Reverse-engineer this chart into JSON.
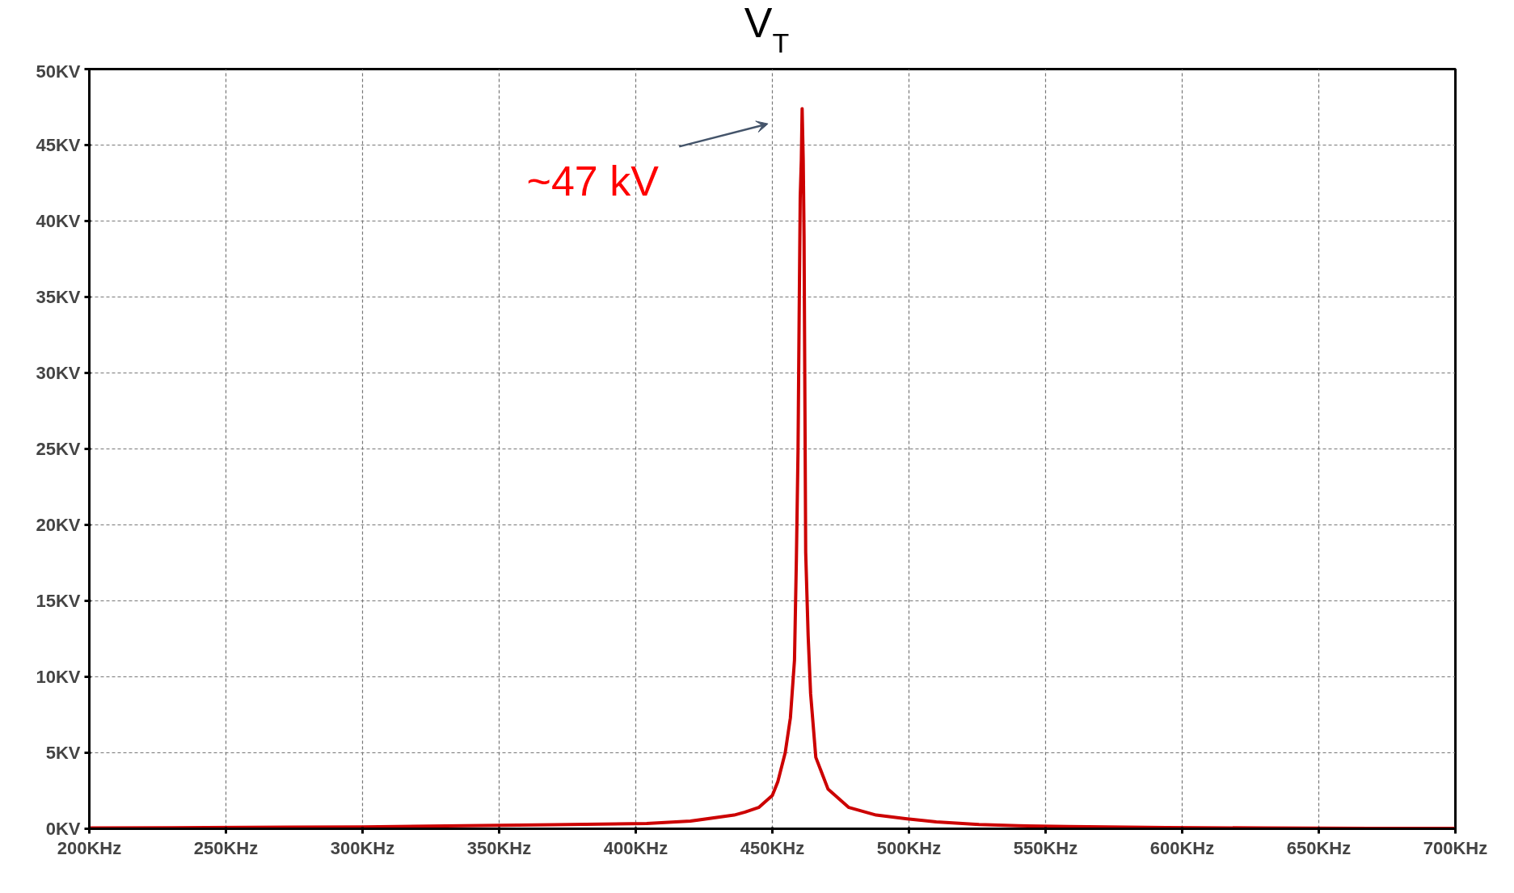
{
  "chart_data": {
    "type": "line",
    "title": "V$_{T}$",
    "x": [
      200,
      230,
      273,
      300,
      337,
      370,
      404,
      420,
      436,
      440,
      445,
      450,
      452,
      454.7,
      456.6,
      458.1,
      458.8,
      459.4,
      459.8,
      460.2,
      460.6,
      460.9,
      461.3,
      461.6,
      462.2,
      463.1,
      464,
      465.9,
      470.4,
      478,
      488,
      498.7,
      510,
      525.6,
      540,
      558.4,
      594.2,
      630,
      668.8,
      700
    ],
    "series": [
      {
        "color": "#cc0000",
        "values": [
          0.05,
          0.07,
          0.1,
          0.12,
          0.2,
          0.27,
          0.35,
          0.5,
          0.9,
          1.1,
          1.4,
          2.2,
          3.1,
          5.0,
          7.3,
          11.1,
          17.8,
          24.9,
          33.6,
          41.6,
          44,
          47.4,
          44,
          39,
          18.2,
          12.7,
          8.9,
          4.7,
          2.6,
          1.4,
          0.9,
          0.67,
          0.45,
          0.28,
          0.2,
          0.15,
          0.08,
          0.05,
          0.03,
          0.02
        ]
      }
    ],
    "xlim": [
      200,
      700
    ],
    "ylim": [
      0,
      50
    ],
    "xticks": [
      {
        "value": 200,
        "label": "200KHz"
      },
      {
        "value": 250,
        "label": "250KHz"
      },
      {
        "value": 300,
        "label": "300KHz"
      },
      {
        "value": 350,
        "label": "350KHz"
      },
      {
        "value": 400,
        "label": "400KHz"
      },
      {
        "value": 450,
        "label": "450KHz"
      },
      {
        "value": 500,
        "label": "500KHz"
      },
      {
        "value": 550,
        "label": "550KHz"
      },
      {
        "value": 600,
        "label": "600KHz"
      },
      {
        "value": 650,
        "label": "650KHz"
      },
      {
        "value": 700,
        "label": "700KHz"
      }
    ],
    "yticks": [
      {
        "value": 0,
        "label": "0KV"
      },
      {
        "value": 5,
        "label": "5KV"
      },
      {
        "value": 10,
        "label": "10KV"
      },
      {
        "value": 15,
        "label": "15KV"
      },
      {
        "value": 20,
        "label": "20KV"
      },
      {
        "value": 25,
        "label": "25KV"
      },
      {
        "value": 30,
        "label": "30KV"
      },
      {
        "value": 35,
        "label": "35KV"
      },
      {
        "value": 40,
        "label": "40KV"
      },
      {
        "value": 45,
        "label": "45KV"
      },
      {
        "value": 50,
        "label": "50KV"
      }
    ],
    "grid": true,
    "marker": "none",
    "line_style": "solid",
    "annotations": [
      "~47 kV"
    ]
  }
}
